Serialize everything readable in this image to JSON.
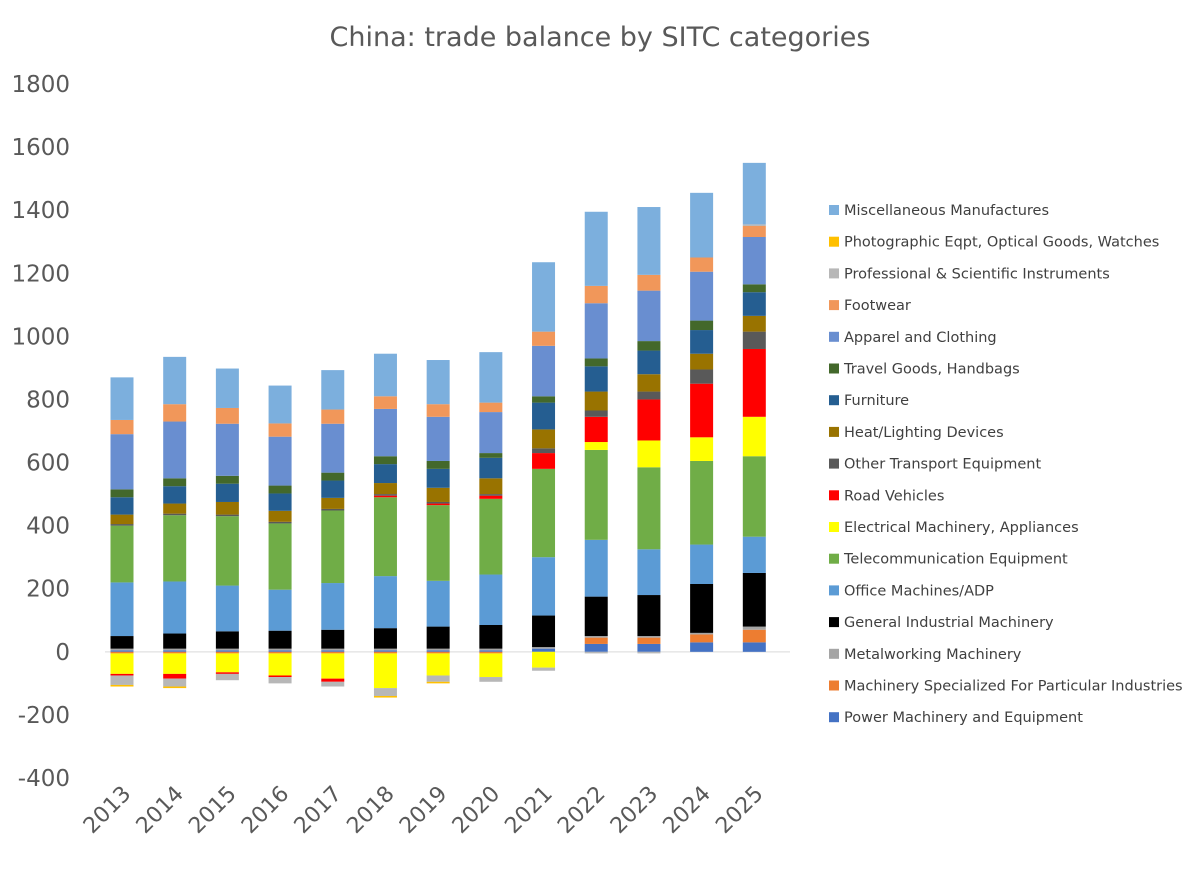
{
  "chart_data": {
    "type": "bar",
    "stacked": true,
    "title": "China: trade balance by SITC categories",
    "xlabel": "",
    "ylabel": "",
    "ylim": [
      -400,
      1800
    ],
    "yticks": [
      -400,
      -200,
      0,
      200,
      400,
      600,
      800,
      1000,
      1200,
      1400,
      1600,
      1800
    ],
    "grid": false,
    "legend_position": "right",
    "categories": [
      "2013",
      "2014",
      "2015",
      "2016",
      "2017",
      "2018",
      "2019",
      "2020",
      "2021",
      "2022",
      "2023",
      "2024",
      "2025"
    ],
    "series": [
      {
        "name": "Power Machinery and Equipment",
        "color": "#4472C4",
        "values": [
          5,
          5,
          5,
          5,
          5,
          5,
          5,
          5,
          10,
          25,
          25,
          30,
          30
        ]
      },
      {
        "name": "Machinery Specialized For Particular Industries",
        "color": "#ED7D31",
        "values": [
          -5,
          -5,
          -5,
          -5,
          -5,
          -5,
          -5,
          -5,
          0,
          20,
          20,
          25,
          40
        ]
      },
      {
        "name": "Metalworking Machinery",
        "color": "#A5A5A5",
        "values": [
          5,
          5,
          5,
          5,
          5,
          5,
          5,
          5,
          5,
          5,
          5,
          5,
          10
        ]
      },
      {
        "name": "General Industrial Machinery",
        "color": "#000000",
        "values": [
          40,
          48,
          55,
          57,
          60,
          65,
          70,
          75,
          100,
          125,
          130,
          155,
          170
        ]
      },
      {
        "name": "Office Machines/ADP",
        "color": "#5B9BD5",
        "values": [
          170,
          165,
          145,
          130,
          148,
          165,
          145,
          160,
          185,
          180,
          145,
          125,
          115
        ]
      },
      {
        "name": "Telecommunication  Equipment",
        "color": "#70AD47",
        "values": [
          180,
          210,
          220,
          210,
          230,
          250,
          240,
          240,
          280,
          285,
          260,
          265,
          255
        ]
      },
      {
        "name": "Electrical Machinery, Appliances",
        "color": "#FFFF00",
        "values": [
          -65,
          -65,
          -60,
          -70,
          -80,
          -110,
          -70,
          -75,
          -50,
          25,
          85,
          75,
          125
        ]
      },
      {
        "name": "Road Vehicles",
        "color": "#FF0000",
        "values": [
          -5,
          -15,
          -5,
          -5,
          -10,
          5,
          5,
          10,
          50,
          80,
          130,
          170,
          215
        ]
      },
      {
        "name": "Other Transport Equipment",
        "color": "#595959",
        "values": [
          5,
          5,
          5,
          5,
          5,
          5,
          5,
          5,
          15,
          20,
          25,
          45,
          55
        ]
      },
      {
        "name": "Heat/Lighting Devices",
        "color": "#997300",
        "values": [
          30,
          32,
          40,
          35,
          35,
          35,
          45,
          50,
          60,
          60,
          55,
          50,
          50
        ]
      },
      {
        "name": "Furniture",
        "color": "#255E91",
        "values": [
          55,
          55,
          58,
          55,
          55,
          60,
          60,
          65,
          85,
          80,
          75,
          75,
          75
        ]
      },
      {
        "name": "Travel Goods, Handbags",
        "color": "#43682B",
        "values": [
          25,
          25,
          25,
          25,
          25,
          25,
          25,
          15,
          20,
          25,
          30,
          30,
          25
        ]
      },
      {
        "name": "Apparel and Clothing",
        "color": "#698ED0",
        "values": [
          175,
          180,
          165,
          155,
          155,
          150,
          140,
          130,
          160,
          175,
          160,
          155,
          150
        ]
      },
      {
        "name": "Footwear",
        "color": "#F1975A",
        "values": [
          45,
          55,
          50,
          42,
          45,
          40,
          40,
          30,
          45,
          55,
          50,
          45,
          35
        ]
      },
      {
        "name": "Professional & Scientific Instruments",
        "color": "#B7B7B7",
        "values": [
          -30,
          -25,
          -20,
          -20,
          -15,
          -25,
          -20,
          -15,
          -10,
          -5,
          -5,
          0,
          5
        ]
      },
      {
        "name": "Photographic Eqpt, Optical Goods, Watches",
        "color": "#FFC000",
        "values": [
          -5,
          -5,
          0,
          0,
          0,
          -5,
          -5,
          0,
          0,
          0,
          0,
          0,
          0
        ]
      },
      {
        "name": "Miscellaneous Manufactures",
        "color": "#7CAFDD",
        "values": [
          135,
          150,
          125,
          120,
          125,
          135,
          140,
          160,
          220,
          235,
          215,
          205,
          195
        ]
      }
    ]
  }
}
